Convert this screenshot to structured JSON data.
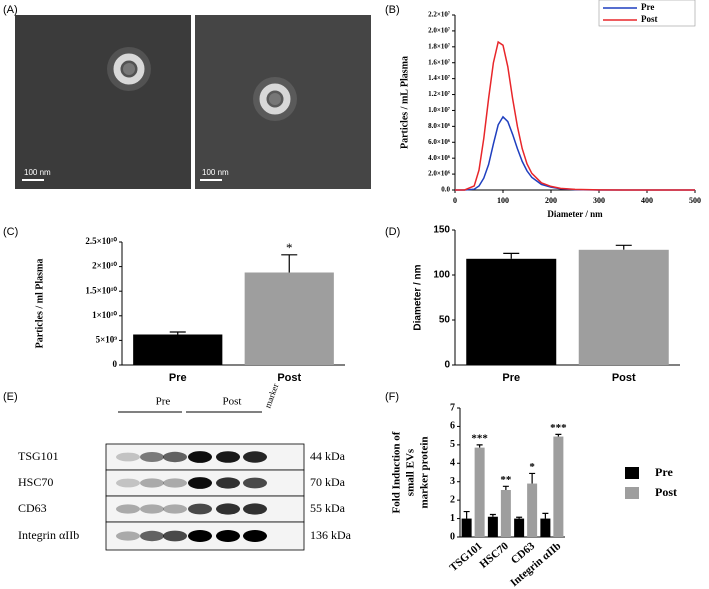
{
  "micrographs": {
    "label": "(A)",
    "scale_bars": [
      "100 nm",
      "100 nm"
    ]
  },
  "western_blot": {
    "label": "(E)",
    "groups": [
      "Pre",
      "Post"
    ],
    "marker": "marker",
    "rows": [
      {
        "protein": "TSG101",
        "size": "44 kDa"
      },
      {
        "protein": "HSC70",
        "size": "70 kDa"
      },
      {
        "protein": "CD63",
        "size": "55 kDa"
      },
      {
        "protein": "Integrin αIIb",
        "size": "136 kDa"
      }
    ]
  },
  "chart_data": [
    {
      "type": "line",
      "panel": "(B)",
      "x": [
        0,
        20,
        40,
        50,
        60,
        70,
        80,
        90,
        100,
        110,
        120,
        130,
        140,
        150,
        160,
        180,
        200,
        220,
        250,
        300,
        350,
        400,
        450,
        500
      ],
      "series": [
        {
          "name": "Pre",
          "color": "#1f3fbf",
          "values": [
            0,
            0,
            100000,
            500000,
            1500000,
            3200000,
            5800000,
            8200000,
            9200000,
            8600000,
            7000000,
            5200000,
            3600000,
            2400000,
            1600000,
            700000,
            350000,
            150000,
            50000,
            0,
            0,
            0,
            0,
            0
          ]
        },
        {
          "name": "Post",
          "color": "#e8262a",
          "values": [
            0,
            0,
            500000,
            2500000,
            6500000,
            11500000,
            16000000,
            18600000,
            18200000,
            15500000,
            11500000,
            8000000,
            5200000,
            3300000,
            2100000,
            900000,
            450000,
            200000,
            70000,
            10000,
            0,
            0,
            0,
            0
          ]
        }
      ],
      "xlim": [
        0,
        500
      ],
      "xticks": [
        0,
        100,
        200,
        300,
        400,
        500
      ],
      "ylim": [
        0,
        22000000
      ],
      "yticks": [
        {
          "value": 0,
          "label": "0.0"
        },
        {
          "value": 2000000,
          "label": "2.0×10⁶"
        },
        {
          "value": 4000000,
          "label": "4.0×10⁶"
        },
        {
          "value": 6000000,
          "label": "6.0×10⁶"
        },
        {
          "value": 8000000,
          "label": "8.0×10⁶"
        },
        {
          "value": 10000000,
          "label": "1.0×10⁷"
        },
        {
          "value": 12000000,
          "label": "1.2×10⁷"
        },
        {
          "value": 14000000,
          "label": "1.4×10⁷"
        },
        {
          "value": 16000000,
          "label": "1.6×10⁷"
        },
        {
          "value": 18000000,
          "label": "1.8×10⁷"
        },
        {
          "value": 20000000,
          "label": "2.0×10⁷"
        },
        {
          "value": 22000000,
          "label": "2.2×10⁷"
        }
      ],
      "xlabel": "Diameter / nm",
      "ylabel": "Particles / mL Plasma",
      "legend": "upper right"
    },
    {
      "type": "bar",
      "panel": "(C)",
      "categories": [
        "Pre",
        "Post"
      ],
      "values": [
        6200000000,
        18800000000
      ],
      "errors": [
        500000000,
        3600000000
      ],
      "colors": [
        "#000000",
        "#9e9e9e"
      ],
      "annotations": [
        null,
        "*"
      ],
      "ylim": [
        0,
        25000000000
      ],
      "yticks": [
        0,
        {
          "value": 5000000000,
          "label": "5×10⁹"
        },
        {
          "value": 10000000000,
          "label": "1×10¹⁰"
        },
        {
          "value": 15000000000,
          "label": "1.5×10¹⁰"
        },
        {
          "value": 20000000000,
          "label": "2×10¹⁰"
        },
        {
          "value": 25000000000,
          "label": "2.5×10¹⁰"
        }
      ],
      "ylabel": "Particles / ml Plasma"
    },
    {
      "type": "bar",
      "panel": "(D)",
      "categories": [
        "Pre",
        "Post"
      ],
      "values": [
        118,
        128
      ],
      "errors": [
        6,
        5
      ],
      "colors": [
        "#000000",
        "#9e9e9e"
      ],
      "ylim": [
        0,
        150
      ],
      "yticks": [
        0,
        50,
        100,
        150
      ],
      "ylabel": "Diameter / nm"
    },
    {
      "type": "grouped_bar",
      "panel": "(F)",
      "categories": [
        "TSG101",
        "HSC70",
        "CD63",
        "Integrin αIIb"
      ],
      "series": [
        {
          "name": "Pre",
          "color": "#000000",
          "values": [
            1,
            1.1,
            1,
            1
          ],
          "errors": [
            0.38,
            0.12,
            0.07,
            0.28
          ]
        },
        {
          "name": "Post",
          "color": "#9e9e9e",
          "values": [
            4.85,
            2.55,
            2.9,
            5.45
          ],
          "errors": [
            0.15,
            0.2,
            0.55,
            0.12
          ]
        }
      ],
      "annotations": [
        "***",
        "**",
        "*",
        "***"
      ],
      "ylim": [
        0,
        7
      ],
      "yticks": [
        0,
        1,
        2,
        3,
        4,
        5,
        6,
        7
      ],
      "ylabel": [
        "Fold Induction of",
        "small EVs",
        "marker protein"
      ],
      "legend": "right"
    }
  ]
}
